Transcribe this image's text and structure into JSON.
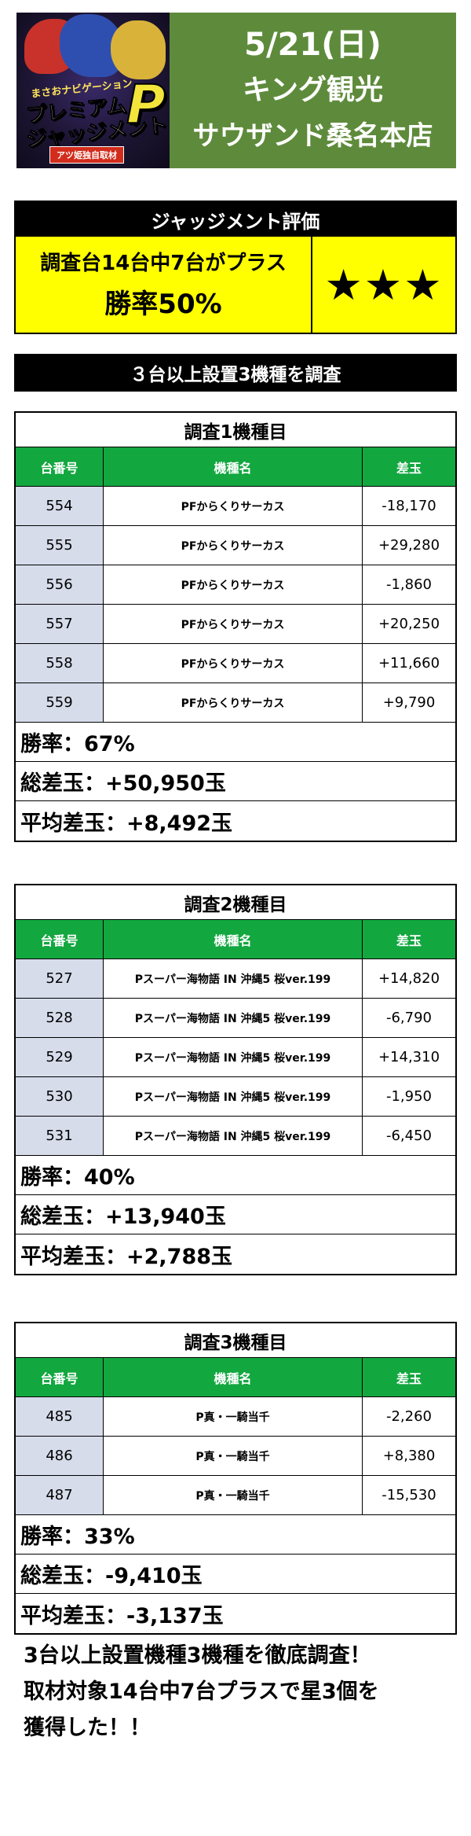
{
  "header": {
    "logo": {
      "subtitle": "まさおナビゲーション",
      "title_line1": "プレミアム",
      "title_line2": "ジャッジメント",
      "title_letter": "P",
      "badge": "アツ姫独自取材"
    },
    "date": "5/21(日)",
    "store_line1": "キング観光",
    "store_line2": "サウザンド桑名本店"
  },
  "judgment": {
    "title": "ジャッジメント評価",
    "line1": "調査台14台中7台がプラス",
    "line2": "勝率50%",
    "stars": "★★★"
  },
  "survey_banner": "３台以上設置3機種を調査",
  "columns": {
    "number": "台番号",
    "name": "機種名",
    "diff": "差玉"
  },
  "tables": [
    {
      "title": "調査1機種目",
      "rows": [
        {
          "number": "554",
          "name": "PFからくりサーカス",
          "diff": "-18,170"
        },
        {
          "number": "555",
          "name": "PFからくりサーカス",
          "diff": "+29,280"
        },
        {
          "number": "556",
          "name": "PFからくりサーカス",
          "diff": "-1,860"
        },
        {
          "number": "557",
          "name": "PFからくりサーカス",
          "diff": "+20,250"
        },
        {
          "number": "558",
          "name": "PFからくりサーカス",
          "diff": "+11,660"
        },
        {
          "number": "559",
          "name": "PFからくりサーカス",
          "diff": "+9,790"
        }
      ],
      "win_rate": "勝率：67%",
      "total": "総差玉：+50,950玉",
      "average": "平均差玉：+8,492玉"
    },
    {
      "title": "調査2機種目",
      "rows": [
        {
          "number": "527",
          "name": "Pスーパー海物語 IN 沖縄5 桜ver.199",
          "diff": "+14,820"
        },
        {
          "number": "528",
          "name": "Pスーパー海物語 IN 沖縄5 桜ver.199",
          "diff": "-6,790"
        },
        {
          "number": "529",
          "name": "Pスーパー海物語 IN 沖縄5 桜ver.199",
          "diff": "+14,310"
        },
        {
          "number": "530",
          "name": "Pスーパー海物語 IN 沖縄5 桜ver.199",
          "diff": "-1,950"
        },
        {
          "number": "531",
          "name": "Pスーパー海物語 IN 沖縄5 桜ver.199",
          "diff": "-6,450"
        }
      ],
      "win_rate": "勝率：40%",
      "total": "総差玉：+13,940玉",
      "average": "平均差玉：+2,788玉"
    },
    {
      "title": "調査3機種目",
      "rows": [
        {
          "number": "485",
          "name": "P真・一騎当千",
          "diff": "-2,260"
        },
        {
          "number": "486",
          "name": "P真・一騎当千",
          "diff": "+8,380"
        },
        {
          "number": "487",
          "name": "P真・一騎当千",
          "diff": "-15,530"
        }
      ],
      "win_rate": "勝率：33%",
      "total": "総差玉：-9,410玉",
      "average": "平均差玉：-3,137玉"
    }
  ],
  "conclusion": {
    "line1": "3台以上設置機種3機種を徹底調査！",
    "line2": "取材対象14台中7台プラスで星3個を",
    "line3": "獲得した！！"
  }
}
